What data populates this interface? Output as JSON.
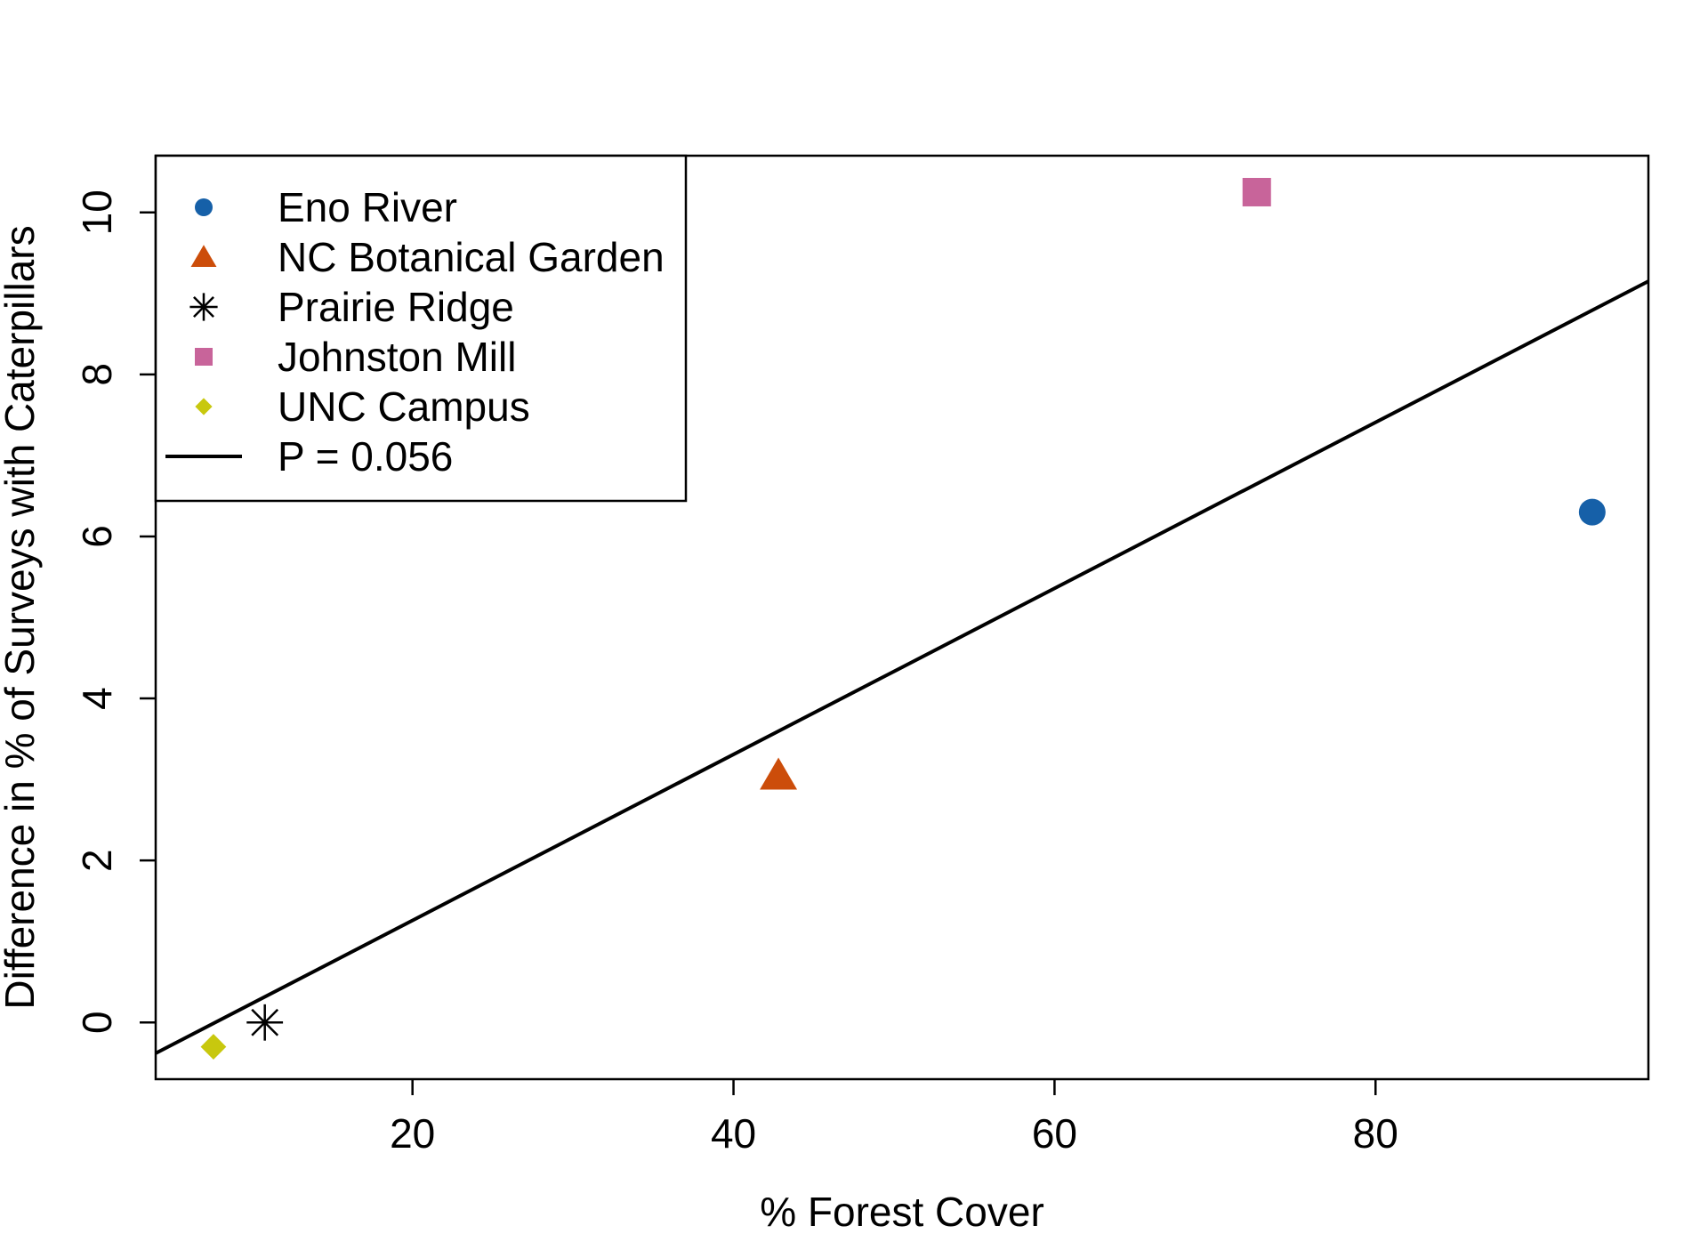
{
  "chart_data": {
    "type": "scatter",
    "xlabel": "% Forest Cover",
    "ylabel": "Difference in  % of Surveys with Caterpillars",
    "xlim": [
      4,
      97
    ],
    "ylim": [
      -0.7,
      10.7
    ],
    "xticks": [
      20,
      40,
      60,
      80
    ],
    "yticks": [
      0,
      2,
      4,
      6,
      8,
      10
    ],
    "grid": false,
    "legend_position": "top-left",
    "series": [
      {
        "name": "Eno River",
        "marker": "circle",
        "color": "#1660a8",
        "points": [
          {
            "x": 93.5,
            "y": 6.3
          }
        ]
      },
      {
        "name": "NC Botanical Garden",
        "marker": "triangle",
        "color": "#cc4d0a",
        "points": [
          {
            "x": 42.8,
            "y": 3.05
          }
        ]
      },
      {
        "name": "Prairie Ridge",
        "marker": "asterisk",
        "color": "#000000",
        "points": [
          {
            "x": 10.8,
            "y": 0.0
          }
        ]
      },
      {
        "name": "Johnston Mill",
        "marker": "square",
        "color": "#c8649a",
        "points": [
          {
            "x": 72.6,
            "y": 10.25
          }
        ]
      },
      {
        "name": "UNC Campus",
        "marker": "diamond",
        "color": "#c8c80e",
        "points": [
          {
            "x": 7.6,
            "y": -0.3
          }
        ]
      }
    ],
    "trendline": {
      "name": "P = 0.056",
      "color": "#000000",
      "x1": 4,
      "y1": -0.38,
      "x2": 97,
      "y2": 9.15
    }
  }
}
